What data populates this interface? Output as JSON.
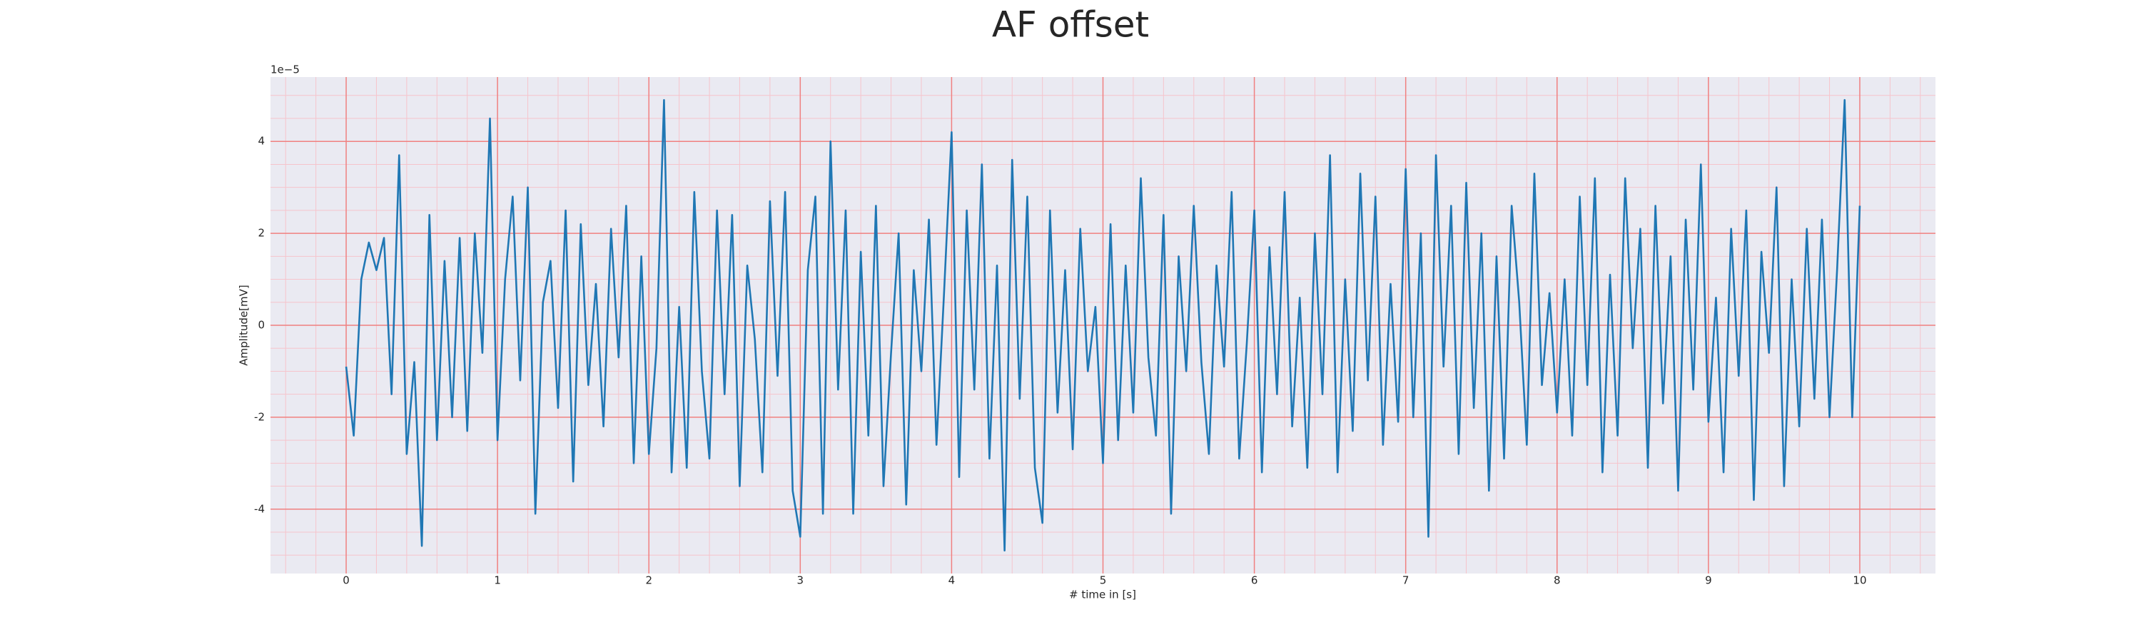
{
  "chart_data": {
    "type": "line",
    "title": "AF offset",
    "xlabel": "# time in [s]",
    "ylabel": "Amplitude[mV]",
    "offset_label": "1e−5",
    "color": "#1f77b4",
    "background": "#eaeaf2",
    "grid": true,
    "grid_color": "#f08080",
    "minor_grid_color": "#f6c4cc",
    "xlim": [
      -0.5,
      10.5
    ],
    "ylim": [
      -5.4,
      5.4
    ],
    "xticks": [
      0,
      1,
      2,
      3,
      4,
      5,
      6,
      7,
      8,
      9,
      10
    ],
    "yticks": [
      -4,
      -2,
      0,
      2,
      4
    ],
    "xticks_minor": [
      -0.4,
      -0.2,
      0.2,
      0.4,
      0.6,
      0.8,
      1.2,
      1.4,
      1.6,
      1.8,
      2.2,
      2.4,
      2.6,
      2.8,
      3.2,
      3.4,
      3.6,
      3.8,
      4.2,
      4.4,
      4.6,
      4.8,
      5.2,
      5.4,
      5.6,
      5.8,
      6.2,
      6.4,
      6.6,
      6.8,
      7.2,
      7.4,
      7.6,
      7.8,
      8.2,
      8.4,
      8.6,
      8.8,
      9.2,
      9.4,
      9.6,
      9.8,
      10.2,
      10.4
    ],
    "yticks_minor": [
      -5,
      -4.5,
      -3.5,
      -3,
      -2.5,
      -1.5,
      -1,
      -0.5,
      0.5,
      1,
      1.5,
      2.5,
      3,
      3.5,
      4.5,
      5
    ],
    "x": [
      0,
      0.05,
      0.1,
      0.15,
      0.2,
      0.25,
      0.3,
      0.35,
      0.4,
      0.45,
      0.5,
      0.55,
      0.6,
      0.65,
      0.7,
      0.75,
      0.8,
      0.85,
      0.9,
      0.95,
      1,
      1.05,
      1.1,
      1.15,
      1.2,
      1.25,
      1.3,
      1.35,
      1.4,
      1.45,
      1.5,
      1.55,
      1.6,
      1.65,
      1.7,
      1.75,
      1.8,
      1.85,
      1.9,
      1.95,
      2,
      2.05,
      2.1,
      2.15,
      2.2,
      2.25,
      2.3,
      2.35,
      2.4,
      2.45,
      2.5,
      2.55,
      2.6,
      2.65,
      2.7,
      2.75,
      2.8,
      2.85,
      2.9,
      2.95,
      3,
      3.05,
      3.1,
      3.15,
      3.2,
      3.25,
      3.3,
      3.35,
      3.4,
      3.45,
      3.5,
      3.55,
      3.6,
      3.65,
      3.7,
      3.75,
      3.8,
      3.85,
      3.9,
      3.95,
      4,
      4.05,
      4.1,
      4.15,
      4.2,
      4.25,
      4.3,
      4.35,
      4.4,
      4.45,
      4.5,
      4.55,
      4.6,
      4.65,
      4.7,
      4.75,
      4.8,
      4.85,
      4.9,
      4.95,
      5,
      5.05,
      5.1,
      5.15,
      5.2,
      5.25,
      5.3,
      5.35,
      5.4,
      5.45,
      5.5,
      5.55,
      5.6,
      5.65,
      5.7,
      5.75,
      5.8,
      5.85,
      5.9,
      5.95,
      6,
      6.05,
      6.1,
      6.15,
      6.2,
      6.25,
      6.3,
      6.35,
      6.4,
      6.45,
      6.5,
      6.55,
      6.6,
      6.65,
      6.7,
      6.75,
      6.8,
      6.85,
      6.9,
      6.95,
      7,
      7.05,
      7.1,
      7.15,
      7.2,
      7.25,
      7.3,
      7.35,
      7.4,
      7.45,
      7.5,
      7.55,
      7.6,
      7.65,
      7.7,
      7.75,
      7.8,
      7.85,
      7.9,
      7.95,
      8,
      8.05,
      8.1,
      8.15,
      8.2,
      8.25,
      8.3,
      8.35,
      8.4,
      8.45,
      8.5,
      8.55,
      8.6,
      8.65,
      8.7,
      8.75,
      8.8,
      8.85,
      8.9,
      8.95,
      9,
      9.05,
      9.1,
      9.15,
      9.2,
      9.25,
      9.3,
      9.35,
      9.4,
      9.45,
      9.5,
      9.55,
      9.6,
      9.65,
      9.7,
      9.75,
      9.8,
      9.85,
      9.9,
      9.95,
      10
    ],
    "values": [
      -0.9,
      -2.4,
      1.0,
      1.8,
      1.2,
      1.9,
      -1.5,
      3.7,
      -2.8,
      -0.8,
      -4.8,
      2.4,
      -2.5,
      1.4,
      -2.0,
      1.9,
      -2.3,
      2.0,
      -0.6,
      4.5,
      -2.5,
      1.0,
      2.8,
      -1.2,
      3.0,
      -4.1,
      0.5,
      1.4,
      -1.8,
      2.5,
      -3.4,
      2.2,
      -1.3,
      0.9,
      -2.2,
      2.1,
      -0.7,
      2.6,
      -3.0,
      1.5,
      -2.8,
      -0.5,
      4.9,
      -3.2,
      0.4,
      -3.1,
      2.9,
      -1.0,
      -2.9,
      2.5,
      -1.5,
      2.4,
      -3.5,
      1.3,
      -0.3,
      -3.2,
      2.7,
      -1.1,
      2.9,
      -3.6,
      -4.6,
      1.2,
      2.8,
      -4.1,
      4.0,
      -1.4,
      2.5,
      -4.1,
      1.6,
      -2.4,
      2.6,
      -3.5,
      -0.6,
      2.0,
      -3.9,
      1.2,
      -1.0,
      2.3,
      -2.6,
      0.7,
      4.2,
      -3.3,
      2.5,
      -1.4,
      3.5,
      -2.9,
      1.3,
      -4.9,
      3.6,
      -1.6,
      2.8,
      -3.1,
      -4.3,
      2.5,
      -1.9,
      1.2,
      -2.7,
      2.1,
      -1.0,
      0.4,
      -3.0,
      2.2,
      -2.5,
      1.3,
      -1.9,
      3.2,
      -0.7,
      -2.4,
      2.4,
      -4.1,
      1.5,
      -1.0,
      2.6,
      -0.8,
      -2.8,
      1.3,
      -0.9,
      2.9,
      -2.9,
      -0.4,
      2.5,
      -3.2,
      1.7,
      -1.5,
      2.9,
      -2.2,
      0.6,
      -3.1,
      2.0,
      -1.5,
      3.7,
      -3.2,
      1.0,
      -2.3,
      3.3,
      -1.2,
      2.8,
      -2.6,
      0.9,
      -2.1,
      3.4,
      -2.0,
      2.0,
      -4.6,
      3.7,
      -0.9,
      2.6,
      -2.8,
      3.1,
      -1.8,
      2.0,
      -3.6,
      1.5,
      -2.9,
      2.6,
      0.5,
      -2.6,
      3.3,
      -1.3,
      0.7,
      -1.9,
      1.0,
      -2.4,
      2.8,
      -1.3,
      3.2,
      -3.2,
      1.1,
      -2.4,
      3.2,
      -0.5,
      2.1,
      -3.1,
      2.6,
      -1.7,
      1.5,
      -3.6,
      2.3,
      -1.4,
      3.5,
      -2.1,
      0.6,
      -3.2,
      2.1,
      -1.1,
      2.5,
      -3.8,
      1.6,
      -0.6,
      3.0,
      -3.5,
      1.0,
      -2.2,
      2.1,
      -1.6,
      2.3,
      -2.0,
      1.2,
      4.9,
      -2.0,
      2.6
    ]
  }
}
